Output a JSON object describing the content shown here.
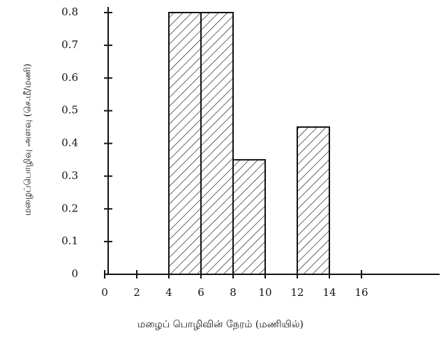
{
  "chart_data": {
    "type": "histogram",
    "xlabel": "மழைப் பொழிவின் நேரம் (மணியில்)",
    "ylabel": "மழைப்பொழிவு அளவு (செ.மீ/மணி)",
    "bins": [
      4,
      6,
      8,
      10,
      12,
      14
    ],
    "values": [
      0.8,
      0.8,
      0.35,
      0,
      0.45
    ],
    "xlim": [
      0,
      16
    ],
    "ylim": [
      0,
      0.8
    ],
    "xticks": [
      0,
      2,
      4,
      6,
      8,
      10,
      12,
      14,
      16
    ],
    "yticks": [
      0,
      0.1,
      0.2,
      0.3,
      0.4,
      0.5,
      0.6,
      0.7,
      0.8
    ],
    "color": "#111"
  }
}
